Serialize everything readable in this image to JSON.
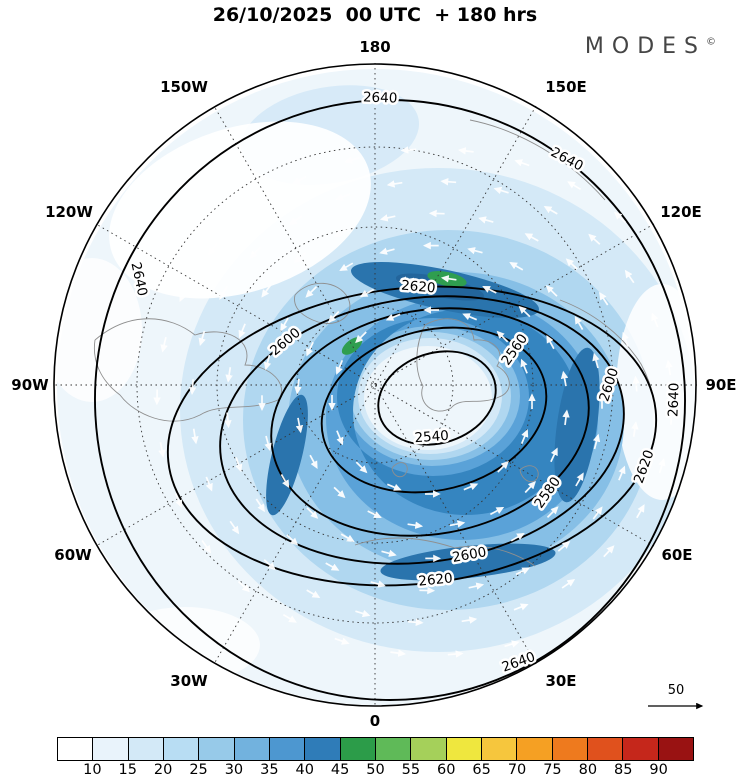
{
  "header": {
    "title": "26/10/2025  00 UTC  + 180 hrs",
    "brand": "MODES",
    "brand_mark": "©"
  },
  "map": {
    "longitude_labels": [
      "180",
      "150W",
      "150E",
      "120W",
      "120E",
      "90W",
      "90E",
      "60W",
      "60E",
      "30W",
      "30E",
      "0"
    ],
    "contour_labels": [
      "2640",
      "2640",
      "2640",
      "2620",
      "2600",
      "2540",
      "2560",
      "2600",
      "2640",
      "2620",
      "2580",
      "2600",
      "2620",
      "2640"
    ],
    "reference_vector_label": "50"
  },
  "colorbar": {
    "tick_labels": [
      10,
      15,
      20,
      25,
      30,
      35,
      40,
      45,
      50,
      55,
      60,
      65,
      70,
      75,
      80,
      85,
      90
    ],
    "colors": [
      "#ffffff",
      "#e9f3fb",
      "#d3e9f7",
      "#b8ddf3",
      "#97cae9",
      "#72b2de",
      "#4d97d0",
      "#2f7cb8",
      "#2c9c49",
      "#5fba58",
      "#a5d05a",
      "#efe73e",
      "#f6c63d",
      "#f5a023",
      "#ee7a1e",
      "#e0511d",
      "#c5271b",
      "#991212"
    ]
  },
  "chart_data": {
    "type": "heatmap",
    "title": "26/10/2025 00 UTC + 180 hrs",
    "description": "North polar view: black geopotential-height contours with wind-speed shading and white wind vectors",
    "contour_levels": [
      2540,
      2560,
      2580,
      2600,
      2620,
      2640
    ],
    "shading_ticks": [
      10,
      15,
      20,
      25,
      30,
      35,
      40,
      45,
      50,
      55,
      60,
      65,
      70,
      75,
      80,
      85,
      90
    ],
    "shading_colors": [
      "#ffffff",
      "#e9f3fb",
      "#d3e9f7",
      "#b8ddf3",
      "#97cae9",
      "#72b2de",
      "#4d97d0",
      "#2f7cb8",
      "#2c9c49",
      "#5fba58",
      "#a5d05a",
      "#efe73e",
      "#f6c63d",
      "#f5a023",
      "#ee7a1e",
      "#e0511d",
      "#c5271b",
      "#991212"
    ],
    "reference_vector": 50,
    "longitude_ring_labels": [
      "180",
      "150W",
      "150E",
      "120W",
      "120E",
      "90W",
      "90E",
      "60W",
      "60E",
      "30W",
      "30E",
      "0"
    ],
    "legend_position": "bottom"
  }
}
